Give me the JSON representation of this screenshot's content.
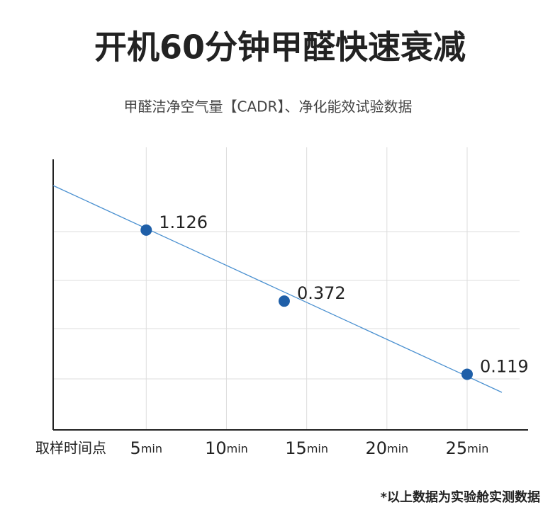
{
  "chart_data": {
    "type": "scatter",
    "title": "开机60分钟甲醛快速衰减",
    "subtitle": "甲醛洁净空气量【CADR】、净化能效试验数据",
    "x_label": "取样时间点",
    "x_unit": "min",
    "note": "*以上数据为实验舱实测数据",
    "series": [
      {
        "color": "#1f5fa8",
        "x": [
          5,
          13.6,
          25
        ],
        "values": [
          1.126,
          0.372,
          0.119
        ]
      }
    ],
    "xlim": [
      -0.8,
      28.8
    ],
    "xticks": [
      5,
      10,
      15,
      20,
      25
    ],
    "ylim": [
      0.05,
      4
    ],
    "log_y": true,
    "grid": true
  }
}
